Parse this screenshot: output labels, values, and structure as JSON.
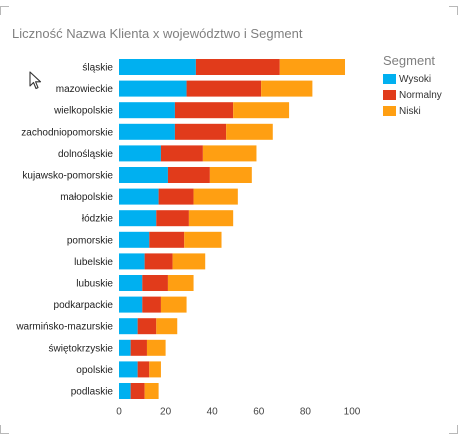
{
  "chart_data": {
    "type": "bar",
    "orientation": "horizontal",
    "stacked": true,
    "title": "Liczność Nazwa Klienta x województwo i Segment",
    "categories": [
      "śląskie",
      "mazowieckie",
      "wielkopolskie",
      "zachodniopomorskie",
      "dolnośląskie",
      "kujawsko-pomorskie",
      "małopolskie",
      "łódzkie",
      "pomorskie",
      "lubelskie",
      "lubuskie",
      "podkarpackie",
      "warmińsko-mazurskie",
      "świętokrzyskie",
      "opolskie",
      "podlaskie"
    ],
    "series": [
      {
        "name": "Wysoki",
        "color": "#00b0f0",
        "values": [
          33,
          29,
          24,
          24,
          18,
          21,
          17,
          16,
          13,
          11,
          10,
          10,
          8,
          5,
          8,
          5
        ]
      },
      {
        "name": "Normalny",
        "color": "#e13b1b",
        "values": [
          36,
          32,
          25,
          22,
          18,
          18,
          15,
          14,
          15,
          12,
          11,
          8,
          8,
          7,
          5,
          6
        ]
      },
      {
        "name": "Niski",
        "color": "#ff9f12",
        "values": [
          28,
          22,
          24,
          20,
          23,
          18,
          19,
          19,
          16,
          14,
          11,
          11,
          9,
          8,
          5,
          6
        ]
      }
    ],
    "xlim": [
      0,
      100
    ],
    "xticks": [
      0,
      20,
      40,
      60,
      80,
      100
    ],
    "grid": false,
    "legend": {
      "title": "Segment",
      "position": "top-right"
    },
    "xlabel": "",
    "ylabel": ""
  }
}
